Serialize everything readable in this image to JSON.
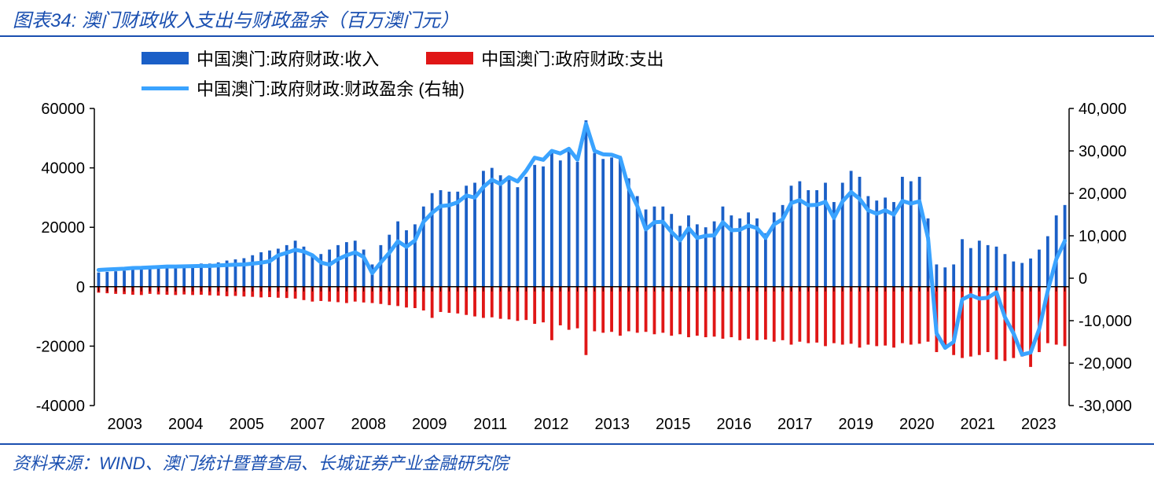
{
  "title": "图表34:  澳门财政收入支出与财政盈余（百万澳门元）",
  "source": "资料来源：WIND、澳门统计暨普查局、长城证券产业金融研究院",
  "legend": {
    "revenue": "中国澳门:政府财政:收入",
    "expenditure": "中国澳门:政府财政:支出",
    "surplus": "中国澳门:政府财政:财政盈余 (右轴)"
  },
  "colors": {
    "revenue_bar": "#1a5fc7",
    "expenditure_bar": "#e01616",
    "surplus_line": "#3aa3ff",
    "axis": "#000000",
    "background": "#ffffff"
  },
  "chart": {
    "type": "bar+line-dual-axis",
    "left_axis": {
      "min": -40000,
      "max": 60000,
      "step": 20000
    },
    "right_axis": {
      "min": -30000,
      "max": 40000,
      "step": 10000
    },
    "x_labels": [
      "2003",
      "2004",
      "2005",
      "2007",
      "2008",
      "2009",
      "2011",
      "2012",
      "2013",
      "2015",
      "2016",
      "2017",
      "2019",
      "2020",
      "2021",
      "2023"
    ],
    "line_width": 5,
    "bar_width_ratio": 0.35,
    "revenue": [
      4800,
      5000,
      5200,
      5400,
      5800,
      6000,
      6400,
      6800,
      7200,
      7200,
      7200,
      7400,
      7800,
      7800,
      8200,
      8800,
      9200,
      9600,
      10600,
      11600,
      12200,
      12800,
      14000,
      15500,
      13500,
      11000,
      11000,
      12500,
      14000,
      15000,
      15500,
      12500,
      7500,
      14000,
      17500,
      22000,
      19000,
      21000,
      27000,
      31500,
      32500,
      32000,
      32000,
      34000,
      35000,
      39000,
      40000,
      37500,
      36000,
      33500,
      37000,
      41000,
      40500,
      45500,
      42500,
      45500,
      42000,
      56000,
      45000,
      43000,
      43500,
      44000,
      36500,
      30500,
      26000,
      27000,
      27000,
      24500,
      20500,
      24000,
      21000,
      20000,
      22000,
      27000,
      24000,
      23000,
      25000,
      23000,
      18000,
      25000,
      27500,
      34000,
      35500,
      32500,
      32500,
      35000,
      28500,
      35000,
      39000,
      37000,
      30500,
      29000,
      30000,
      28500,
      37000,
      35500,
      37000,
      23000,
      7500,
      6500,
      7500,
      16000,
      13000,
      15500,
      14000,
      13500,
      11000,
      8500,
      8000,
      9500,
      12500,
      17000,
      24000,
      27500
    ],
    "expenditure": [
      -2000,
      -2200,
      -2400,
      -2500,
      -2700,
      -2800,
      -2400,
      -2600,
      -2700,
      -2800,
      -2600,
      -2800,
      -2700,
      -2900,
      -3000,
      -3200,
      -3100,
      -3300,
      -3400,
      -3600,
      -3500,
      -3700,
      -3800,
      -4000,
      -4500,
      -5000,
      -4800,
      -5000,
      -5200,
      -5500,
      -5000,
      -5300,
      -5500,
      -5800,
      -6200,
      -6500,
      -7000,
      -7200,
      -8000,
      -10500,
      -8500,
      -8800,
      -9000,
      -9500,
      -10000,
      -10500,
      -10300,
      -10800,
      -11000,
      -11500,
      -11200,
      -12500,
      -12000,
      -18000,
      -13000,
      -14500,
      -14000,
      -23000,
      -15000,
      -15500,
      -15200,
      -16500,
      -15000,
      -15500,
      -15200,
      -16000,
      -15500,
      -16500,
      -16000,
      -17000,
      -16500,
      -17000,
      -16800,
      -17500,
      -17000,
      -18000,
      -17500,
      -18000,
      -17800,
      -18500,
      -18000,
      -19500,
      -18500,
      -19000,
      -18800,
      -20000,
      -19000,
      -19500,
      -19200,
      -20500,
      -19500,
      -20000,
      -19800,
      -20500,
      -19000,
      -19500,
      -19200,
      -18500,
      -22000,
      -20500,
      -23000,
      -24000,
      -23500,
      -23000,
      -22000,
      -24500,
      -25000,
      -24000,
      -23500,
      -27000,
      -22000,
      -19000,
      -19500,
      -20000
    ],
    "surplus": [
      1950,
      2050,
      2150,
      2250,
      2400,
      2450,
      2550,
      2650,
      2750,
      2750,
      2800,
      2850,
      2900,
      2900,
      3000,
      3100,
      3200,
      3250,
      3450,
      3650,
      4000,
      5400,
      6000,
      6700,
      6300,
      5400,
      3700,
      3200,
      4500,
      5400,
      6100,
      5000,
      1200,
      3700,
      6000,
      8700,
      7400,
      8900,
      13300,
      15400,
      17000,
      17200,
      17900,
      19500,
      19000,
      21500,
      23200,
      22200,
      23800,
      22800,
      25300,
      28400,
      27900,
      30000,
      29400,
      30500,
      27900,
      36400,
      30000,
      29200,
      29100,
      28400,
      21200,
      17000,
      11500,
      13200,
      13300,
      10900,
      8900,
      11800,
      9500,
      10000,
      10100,
      13200,
      11300,
      11400,
      12400,
      11800,
      9500,
      12700,
      13900,
      17700,
      18400,
      17200,
      17300,
      18000,
      14200,
      18100,
      20300,
      18700,
      16000,
      15200,
      16000,
      15000,
      18200,
      17600,
      18100,
      9500,
      -13000,
      -16400,
      -15000,
      -5000,
      -4000,
      -4800,
      -4600,
      -3300,
      -9200,
      -13000,
      -18000,
      -17500,
      -12000,
      -3000,
      4500,
      8800
    ]
  }
}
